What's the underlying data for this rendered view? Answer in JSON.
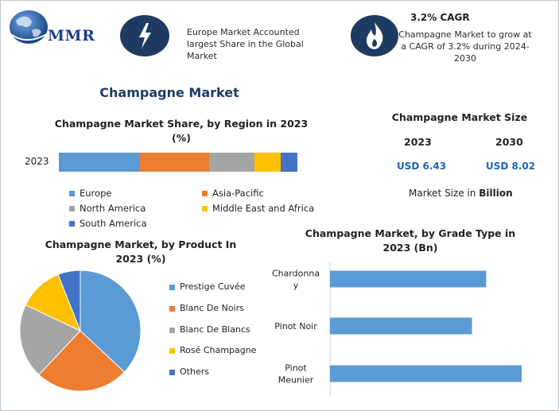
{
  "header": {
    "logo_text": "MMR",
    "insight_1": "Europe Market Accounted largest Share in the Global Market",
    "cagr_title": "3.2% CAGR",
    "cagr_text": "Champagne Market to grow at a CAGR of 3.2% during 2024-2030"
  },
  "main_title": "Champagne Market",
  "market_size": {
    "title": "Champagne Market Size",
    "year_a": "2023",
    "year_b": "2030",
    "value_a": "USD 6.43",
    "value_b": "USD 8.02",
    "note_prefix": "Market Size in ",
    "note_bold": "Billion"
  },
  "colors": {
    "europe": "#5b9bd5",
    "asia_pacific": "#ed7d31",
    "north_america": "#a5a5a5",
    "mea": "#ffc000",
    "south_america": "#4472c4",
    "icon_circle": "#1f3b63"
  },
  "chart_data": [
    {
      "type": "bar",
      "orientation": "horizontal-stacked",
      "title": "Champagne Market Share, by Region in 2023 (%)",
      "categories": [
        "2023"
      ],
      "series": [
        {
          "name": "Europe",
          "values": [
            34
          ]
        },
        {
          "name": "Asia-Pacific",
          "values": [
            29
          ]
        },
        {
          "name": "North America",
          "values": [
            19
          ]
        },
        {
          "name": "Middle East and Africa",
          "values": [
            11
          ]
        },
        {
          "name": "South America",
          "values": [
            7
          ]
        }
      ],
      "legend": [
        "Europe",
        "Asia-Pacific",
        "North America",
        "Middle East and Africa",
        "South America"
      ],
      "legend_position": "bottom"
    },
    {
      "type": "pie",
      "title": "Champagne Market, by Product In 2023 (%)",
      "labels": [
        "Prestige Cuvée",
        "Blanc De Noirs",
        "Blanc De Blancs",
        "Rosé Champagne",
        "Others"
      ],
      "values": [
        37,
        25,
        20,
        12,
        6
      ],
      "legend_position": "right"
    },
    {
      "type": "bar",
      "orientation": "horizontal",
      "title": "Champagne Market, by Grade Type in 2023 (Bn)",
      "categories": [
        "Chardonnay",
        "Pinot Noir",
        "Pinot Meunier"
      ],
      "category_lines": [
        [
          "Chardonna",
          "y"
        ],
        [
          "Pinot Noir"
        ],
        [
          "Pinot",
          "Meunier"
        ]
      ],
      "values": [
        2.2,
        2.0,
        2.7
      ],
      "xlim": [
        0,
        2.8
      ]
    }
  ]
}
